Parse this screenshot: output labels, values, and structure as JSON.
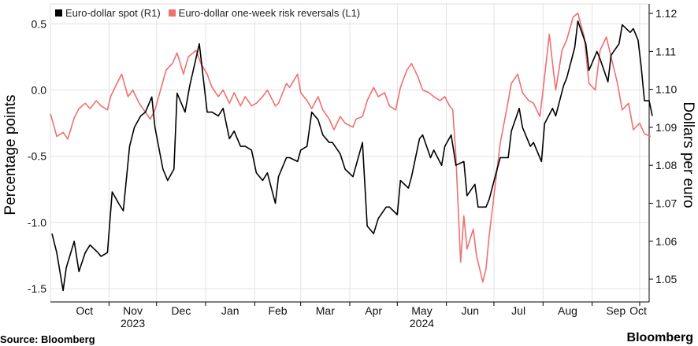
{
  "chart_data": {
    "type": "line",
    "title": "",
    "x_range": [
      "2023-09-25",
      "2024-10-07"
    ],
    "x_tick_labels": [
      "Oct",
      "Nov",
      "Dec",
      "Jan",
      "Feb",
      "Mar",
      "Apr",
      "May",
      "Jun",
      "Jul",
      "Aug",
      "Sep",
      "Oct"
    ],
    "x_year_labels": [
      "2023",
      "2024"
    ],
    "left_axis": {
      "label": "Percentage points",
      "ylim": [
        -1.6,
        0.65
      ],
      "ticks": [
        "0.5",
        "0.0",
        "-0.5",
        "-1.0",
        "-1.5"
      ]
    },
    "right_axis": {
      "label": "Dollars per euro",
      "ylim": [
        1.044,
        1.1225
      ],
      "ticks": [
        "1.12",
        "1.11",
        "1.10",
        "1.09",
        "1.08",
        "1.07",
        "1.06",
        "1.05"
      ]
    },
    "grid": true,
    "legend_position": "top-left",
    "series": [
      {
        "name": "Euro-dollar spot (R1)",
        "axis": "right",
        "color": "#000000",
        "points": [
          [
            "2023-09-26",
            1.062
          ],
          [
            "2023-09-29",
            1.057
          ],
          [
            "2023-10-03",
            1.047
          ],
          [
            "2023-10-05",
            1.053
          ],
          [
            "2023-10-10",
            1.06
          ],
          [
            "2023-10-13",
            1.052
          ],
          [
            "2023-10-17",
            1.057
          ],
          [
            "2023-10-20",
            1.059
          ],
          [
            "2023-10-25",
            1.057
          ],
          [
            "2023-10-27",
            1.056
          ],
          [
            "2023-10-31",
            1.057
          ],
          [
            "2023-11-03",
            1.073
          ],
          [
            "2023-11-07",
            1.07
          ],
          [
            "2023-11-10",
            1.068
          ],
          [
            "2023-11-14",
            1.085
          ],
          [
            "2023-11-17",
            1.09
          ],
          [
            "2023-11-21",
            1.093
          ],
          [
            "2023-11-24",
            1.094
          ],
          [
            "2023-11-28",
            1.098
          ],
          [
            "2023-11-30",
            1.09
          ],
          [
            "2023-12-05",
            1.079
          ],
          [
            "2023-12-08",
            1.076
          ],
          [
            "2023-12-12",
            1.079
          ],
          [
            "2023-12-14",
            1.099
          ],
          [
            "2023-12-19",
            1.094
          ],
          [
            "2023-12-22",
            1.101
          ],
          [
            "2023-12-28",
            1.112
          ],
          [
            "2024-01-02",
            1.094
          ],
          [
            "2024-01-05",
            1.094
          ],
          [
            "2024-01-09",
            1.093
          ],
          [
            "2024-01-12",
            1.095
          ],
          [
            "2024-01-16",
            1.087
          ],
          [
            "2024-01-19",
            1.089
          ],
          [
            "2024-01-23",
            1.085
          ],
          [
            "2024-01-26",
            1.085
          ],
          [
            "2024-01-30",
            1.084
          ],
          [
            "2024-02-02",
            1.078
          ],
          [
            "2024-02-06",
            1.076
          ],
          [
            "2024-02-09",
            1.078
          ],
          [
            "2024-02-14",
            1.07
          ],
          [
            "2024-02-16",
            1.077
          ],
          [
            "2024-02-21",
            1.082
          ],
          [
            "2024-02-23",
            1.082
          ],
          [
            "2024-02-28",
            1.081
          ],
          [
            "2024-03-01",
            1.084
          ],
          [
            "2024-03-05",
            1.085
          ],
          [
            "2024-03-08",
            1.094
          ],
          [
            "2024-03-12",
            1.092
          ],
          [
            "2024-03-15",
            1.088
          ],
          [
            "2024-03-19",
            1.086
          ],
          [
            "2024-03-21",
            1.086
          ],
          [
            "2024-03-26",
            1.083
          ],
          [
            "2024-03-29",
            1.079
          ],
          [
            "2024-04-03",
            1.077
          ],
          [
            "2024-04-09",
            1.086
          ],
          [
            "2024-04-12",
            1.064
          ],
          [
            "2024-04-16",
            1.062
          ],
          [
            "2024-04-19",
            1.066
          ],
          [
            "2024-04-24",
            1.069
          ],
          [
            "2024-04-26",
            1.069
          ],
          [
            "2024-05-01",
            1.067
          ],
          [
            "2024-05-03",
            1.076
          ],
          [
            "2024-05-08",
            1.074
          ],
          [
            "2024-05-10",
            1.077
          ],
          [
            "2024-05-15",
            1.087
          ],
          [
            "2024-05-17",
            1.088
          ],
          [
            "2024-05-22",
            1.082
          ],
          [
            "2024-05-24",
            1.084
          ],
          [
            "2024-05-29",
            1.08
          ],
          [
            "2024-05-31",
            1.085
          ],
          [
            "2024-06-04",
            1.088
          ],
          [
            "2024-06-07",
            1.08
          ],
          [
            "2024-06-12",
            1.081
          ],
          [
            "2024-06-14",
            1.072
          ],
          [
            "2024-06-19",
            1.075
          ],
          [
            "2024-06-21",
            1.069
          ],
          [
            "2024-06-26",
            1.069
          ],
          [
            "2024-06-28",
            1.071
          ],
          [
            "2024-07-03",
            1.079
          ],
          [
            "2024-07-05",
            1.082
          ],
          [
            "2024-07-10",
            1.082
          ],
          [
            "2024-07-12",
            1.089
          ],
          [
            "2024-07-17",
            1.095
          ],
          [
            "2024-07-19",
            1.09
          ],
          [
            "2024-07-24",
            1.085
          ],
          [
            "2024-07-26",
            1.086
          ],
          [
            "2024-07-31",
            1.081
          ],
          [
            "2024-08-02",
            1.091
          ],
          [
            "2024-08-07",
            1.095
          ],
          [
            "2024-08-09",
            1.093
          ],
          [
            "2024-08-14",
            1.101
          ],
          [
            "2024-08-16",
            1.103
          ],
          [
            "2024-08-21",
            1.111
          ],
          [
            "2024-08-23",
            1.118
          ],
          [
            "2024-08-28",
            1.112
          ],
          [
            "2024-08-30",
            1.105
          ],
          [
            "2024-09-04",
            1.11
          ],
          [
            "2024-09-06",
            1.108
          ],
          [
            "2024-09-11",
            1.102
          ],
          [
            "2024-09-13",
            1.109
          ],
          [
            "2024-09-18",
            1.112
          ],
          [
            "2024-09-20",
            1.117
          ],
          [
            "2024-09-25",
            1.115
          ],
          [
            "2024-09-27",
            1.116
          ],
          [
            "2024-09-30",
            1.113
          ],
          [
            "2024-10-02",
            1.106
          ],
          [
            "2024-10-04",
            1.097
          ],
          [
            "2024-10-07",
            1.097
          ],
          [
            "2024-10-09",
            1.093
          ]
        ]
      },
      {
        "name": "Euro-dollar one-week risk reversals (L1)",
        "axis": "left",
        "color": "#f07070",
        "points": [
          [
            "2023-09-25",
            -0.18
          ],
          [
            "2023-09-27",
            -0.26
          ],
          [
            "2023-09-29",
            -0.35
          ],
          [
            "2023-10-03",
            -0.32
          ],
          [
            "2023-10-06",
            -0.37
          ],
          [
            "2023-10-10",
            -0.21
          ],
          [
            "2023-10-13",
            -0.14
          ],
          [
            "2023-10-17",
            -0.1
          ],
          [
            "2023-10-20",
            -0.14
          ],
          [
            "2023-10-24",
            -0.08
          ],
          [
            "2023-10-27",
            -0.12
          ],
          [
            "2023-10-31",
            -0.15
          ],
          [
            "2023-11-02",
            -0.05
          ],
          [
            "2023-11-06",
            0.05
          ],
          [
            "2023-11-09",
            0.12
          ],
          [
            "2023-11-13",
            -0.05
          ],
          [
            "2023-11-16",
            0.0
          ],
          [
            "2023-11-20",
            -0.1
          ],
          [
            "2023-11-23",
            -0.15
          ],
          [
            "2023-11-27",
            -0.22
          ],
          [
            "2023-11-30",
            -0.15
          ],
          [
            "2023-12-04",
            0.02
          ],
          [
            "2023-12-07",
            0.15
          ],
          [
            "2023-12-11",
            0.2
          ],
          [
            "2023-12-14",
            0.28
          ],
          [
            "2023-12-18",
            0.12
          ],
          [
            "2023-12-21",
            0.25
          ],
          [
            "2023-12-26",
            0.3
          ],
          [
            "2023-12-29",
            0.2
          ],
          [
            "2024-01-02",
            0.12
          ],
          [
            "2024-01-05",
            0.02
          ],
          [
            "2024-01-09",
            -0.05
          ],
          [
            "2024-01-12",
            0.0
          ],
          [
            "2024-01-16",
            -0.1
          ],
          [
            "2024-01-19",
            -0.02
          ],
          [
            "2024-01-23",
            -0.12
          ],
          [
            "2024-01-26",
            -0.05
          ],
          [
            "2024-01-30",
            -0.12
          ],
          [
            "2024-02-02",
            -0.1
          ],
          [
            "2024-02-06",
            -0.05
          ],
          [
            "2024-02-09",
            0.0
          ],
          [
            "2024-02-14",
            -0.12
          ],
          [
            "2024-02-16",
            -0.1
          ],
          [
            "2024-02-21",
            0.05
          ],
          [
            "2024-02-23",
            0.02
          ],
          [
            "2024-02-28",
            0.12
          ],
          [
            "2024-03-01",
            -0.02
          ],
          [
            "2024-03-05",
            -0.08
          ],
          [
            "2024-03-08",
            -0.14
          ],
          [
            "2024-03-12",
            -0.05
          ],
          [
            "2024-03-15",
            -0.15
          ],
          [
            "2024-03-19",
            -0.22
          ],
          [
            "2024-03-22",
            -0.3
          ],
          [
            "2024-03-26",
            -0.2
          ],
          [
            "2024-03-29",
            -0.25
          ],
          [
            "2024-04-03",
            -0.28
          ],
          [
            "2024-04-05",
            -0.22
          ],
          [
            "2024-04-09",
            -0.2
          ],
          [
            "2024-04-12",
            -0.08
          ],
          [
            "2024-04-16",
            0.02
          ],
          [
            "2024-04-19",
            -0.05
          ],
          [
            "2024-04-23",
            -0.02
          ],
          [
            "2024-04-26",
            -0.12
          ],
          [
            "2024-04-30",
            -0.15
          ],
          [
            "2024-05-03",
            0.02
          ],
          [
            "2024-05-07",
            0.15
          ],
          [
            "2024-05-10",
            0.2
          ],
          [
            "2024-05-14",
            0.1
          ],
          [
            "2024-05-17",
            0.0
          ],
          [
            "2024-05-21",
            -0.02
          ],
          [
            "2024-05-24",
            -0.05
          ],
          [
            "2024-05-28",
            -0.08
          ],
          [
            "2024-05-31",
            -0.05
          ],
          [
            "2024-06-03",
            -0.12
          ],
          [
            "2024-06-05",
            -0.15
          ],
          [
            "2024-06-07",
            -0.5
          ],
          [
            "2024-06-10",
            -1.3
          ],
          [
            "2024-06-12",
            -0.95
          ],
          [
            "2024-06-14",
            -1.2
          ],
          [
            "2024-06-18",
            -1.05
          ],
          [
            "2024-06-20",
            -1.25
          ],
          [
            "2024-06-24",
            -1.45
          ],
          [
            "2024-06-26",
            -1.35
          ],
          [
            "2024-06-28",
            -1.1
          ],
          [
            "2024-07-02",
            -0.7
          ],
          [
            "2024-07-05",
            -0.4
          ],
          [
            "2024-07-09",
            -0.15
          ],
          [
            "2024-07-12",
            0.05
          ],
          [
            "2024-07-16",
            0.12
          ],
          [
            "2024-07-19",
            -0.02
          ],
          [
            "2024-07-23",
            -0.08
          ],
          [
            "2024-07-26",
            -0.1
          ],
          [
            "2024-07-30",
            -0.2
          ],
          [
            "2024-08-01",
            0.0
          ],
          [
            "2024-08-05",
            0.42
          ],
          [
            "2024-08-07",
            0.2
          ],
          [
            "2024-08-09",
            0.0
          ],
          [
            "2024-08-13",
            0.3
          ],
          [
            "2024-08-16",
            0.38
          ],
          [
            "2024-08-20",
            0.55
          ],
          [
            "2024-08-23",
            0.58
          ],
          [
            "2024-08-27",
            0.4
          ],
          [
            "2024-08-30",
            0.05
          ],
          [
            "2024-09-03",
            0.0
          ],
          [
            "2024-09-06",
            0.3
          ],
          [
            "2024-09-10",
            0.4
          ],
          [
            "2024-09-13",
            0.25
          ],
          [
            "2024-09-17",
            0.05
          ],
          [
            "2024-09-20",
            -0.15
          ],
          [
            "2024-09-24",
            -0.1
          ],
          [
            "2024-09-27",
            -0.3
          ],
          [
            "2024-10-01",
            -0.25
          ],
          [
            "2024-10-04",
            -0.33
          ],
          [
            "2024-10-08",
            -0.35
          ]
        ]
      }
    ]
  },
  "footer": {
    "source": "Source: Bloomberg",
    "brand": "Bloomberg"
  }
}
